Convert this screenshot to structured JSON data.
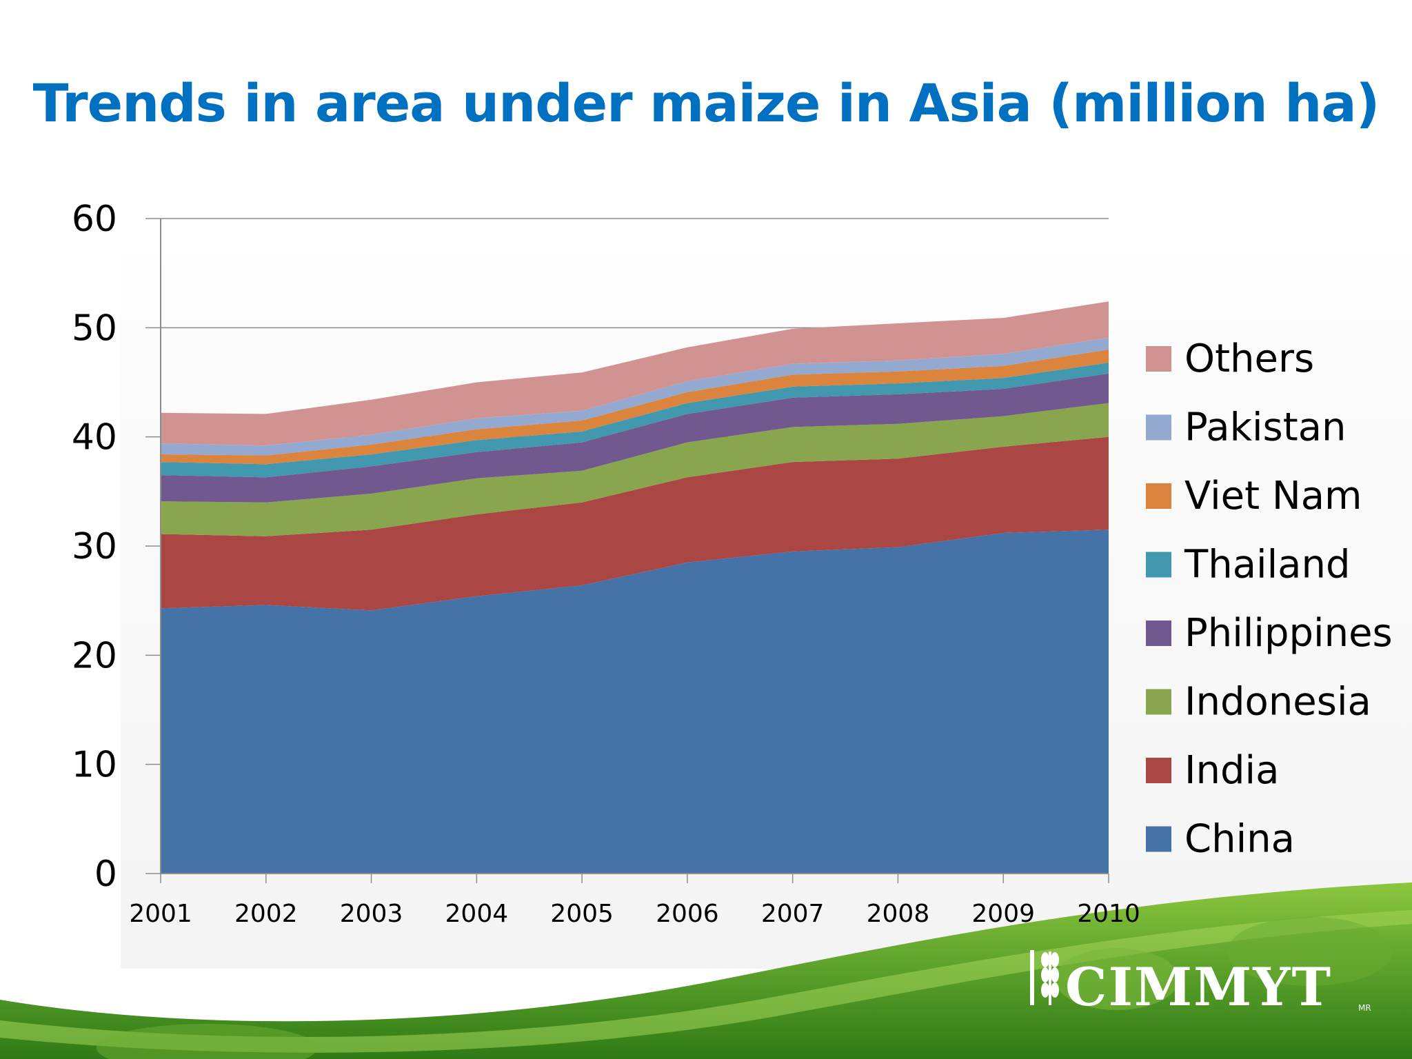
{
  "slide": {
    "title": "Trends in area under maize in Asia (million ha)",
    "title_color": "#0070c0",
    "logo_text": "CIMMYT",
    "logo_mark": "MR"
  },
  "chart_data": {
    "type": "area",
    "stacked": true,
    "x": [
      "2001",
      "2002",
      "2003",
      "2004",
      "2005",
      "2006",
      "2007",
      "2008",
      "2009",
      "2010"
    ],
    "ylim": [
      0,
      60
    ],
    "yticks": [
      0,
      10,
      20,
      30,
      40,
      50,
      60
    ],
    "grid": true,
    "legend_position": "right",
    "series": [
      {
        "name": "China",
        "color": "#4572a7",
        "values": [
          24.3,
          24.6,
          24.1,
          25.4,
          26.4,
          28.5,
          29.5,
          29.9,
          31.2,
          31.5
        ]
      },
      {
        "name": "India",
        "color": "#aa4643",
        "values": [
          6.8,
          6.3,
          7.4,
          7.5,
          7.6,
          7.8,
          8.2,
          8.1,
          7.9,
          8.5
        ]
      },
      {
        "name": "Indonesia",
        "color": "#89a54e",
        "values": [
          3.0,
          3.1,
          3.3,
          3.3,
          2.9,
          3.2,
          3.2,
          3.2,
          2.8,
          3.1
        ]
      },
      {
        "name": "Philippines",
        "color": "#71588f",
        "values": [
          2.4,
          2.3,
          2.5,
          2.4,
          2.6,
          2.6,
          2.7,
          2.7,
          2.5,
          2.7
        ]
      },
      {
        "name": "Thailand",
        "color": "#4198af",
        "values": [
          1.2,
          1.2,
          1.1,
          1.1,
          1.0,
          1.0,
          1.0,
          1.0,
          1.0,
          1.0
        ]
      },
      {
        "name": "Viet Nam",
        "color": "#db843d",
        "values": [
          0.7,
          0.8,
          0.9,
          1.0,
          1.0,
          1.0,
          1.1,
          1.1,
          1.1,
          1.2
        ]
      },
      {
        "name": "Pakistan",
        "color": "#93a9cf",
        "values": [
          1.0,
          0.9,
          0.9,
          1.0,
          0.9,
          1.0,
          1.0,
          1.0,
          1.1,
          1.1
        ]
      },
      {
        "name": "Others",
        "color": "#d19392",
        "values": [
          2.8,
          2.9,
          3.2,
          3.3,
          3.5,
          3.1,
          3.2,
          3.4,
          3.3,
          3.3
        ]
      }
    ]
  }
}
